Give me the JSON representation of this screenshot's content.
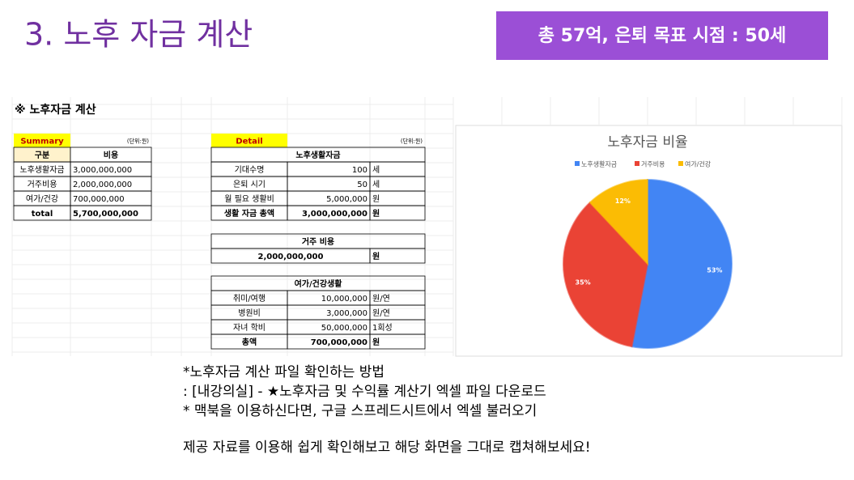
{
  "header": {
    "title": "3. 노후 자금 계산",
    "badge": "총 57억, 은퇴 목표 시점  : 50세"
  },
  "sheet": {
    "title": "※ 노후자금 계산",
    "summary": {
      "label": "Summary",
      "unit": "(단위:원)",
      "header": [
        "구분",
        "비용"
      ],
      "rows": [
        [
          "노후생활자금",
          "3,000,000,000"
        ],
        [
          "거주비용",
          "2,000,000,000"
        ],
        [
          "여가/건강",
          "700,000,000"
        ],
        [
          "total",
          "5,700,000,000"
        ]
      ]
    },
    "detail": {
      "label": "Detail",
      "unit": "(단위:원)",
      "sections": [
        {
          "title": "노후생활자금",
          "rows": [
            [
              "기대수명",
              "100",
              "세"
            ],
            [
              "은퇴 시기",
              "50",
              "세"
            ],
            [
              "월 필요 생활비",
              "5,000,000",
              "원"
            ],
            [
              "생활 자금 총액",
              "3,000,000,000",
              "원"
            ]
          ]
        },
        {
          "title": "거주 비용",
          "rows": [
            [
              "2,000,000,000",
              "원"
            ]
          ]
        },
        {
          "title": "여가/건강생활",
          "rows": [
            [
              "취미/여행",
              "10,000,000",
              "원/연"
            ],
            [
              "병원비",
              "3,000,000",
              "원/연"
            ],
            [
              "자녀 학비",
              "50,000,000",
              "1회성"
            ],
            [
              "총액",
              "700,000,000",
              "원"
            ]
          ]
        }
      ]
    }
  },
  "chart_data": {
    "type": "pie",
    "title": "노후자금 비율",
    "categories": [
      "노후생활자금",
      "거주비용",
      "여가/건강"
    ],
    "values": [
      53,
      35,
      12
    ],
    "value_labels": [
      "53%",
      "35%",
      "12%"
    ],
    "colors": [
      "#4285f4",
      "#ea4335",
      "#fbbc04"
    ],
    "legend": "top"
  },
  "notes": [
    "*노후자금 계산 파일 확인하는 방법",
    ": [내강의실] - ★노후자금 및 수익률 계산기 엑셀 파일 다운로드",
    "* 맥북을 이용하신다면, 구글 스프레드시트에서 엑셀 불러오기",
    "제공 자료를 이용해 쉽게 확인해보고 해당 화면을 그대로 캡쳐해보세요!"
  ]
}
